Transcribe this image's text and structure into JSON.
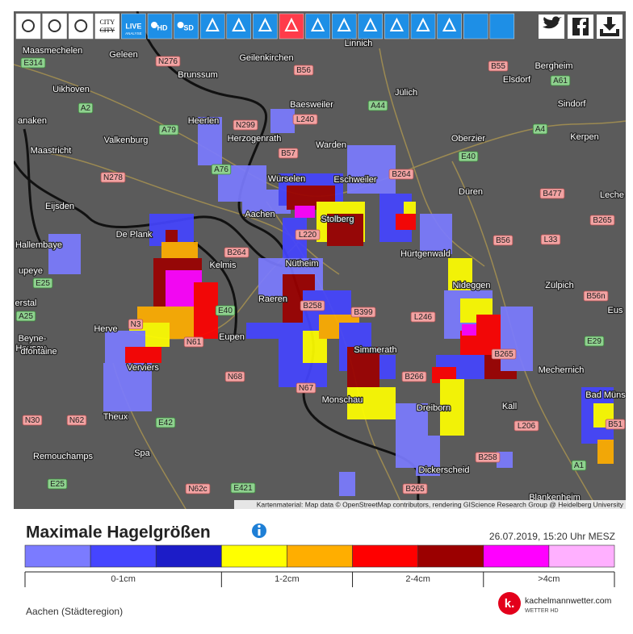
{
  "toolbar": {
    "city": "CITY",
    "live": "LIVE",
    "analyse": "ANALYSE",
    "hd": "HD",
    "sd": "SD"
  },
  "map": {
    "places": [
      "Maasmechelen",
      "Geleen",
      "Brunssum",
      "Geilenkirchen",
      "Linnich",
      "Jülich",
      "Bergheim",
      "Elsdorf",
      "Uikhoven",
      "Baesweiler",
      "Sindorf",
      "anaken",
      "Heerlen",
      "Herzogenrath",
      "Oberzier",
      "Kerpen",
      "Maastricht",
      "Valkenburg",
      "Warden",
      "Würselen",
      "Eschweiler",
      "Düren",
      "Leche",
      "Eijsden",
      "Aachen",
      "Stolberg",
      "De Plank",
      "Hallembaye",
      "Kelmis",
      "Nütheim",
      "Hürtgenwald",
      "upeye",
      "Nideggen",
      "Zülpich",
      "erstal",
      "Raeren",
      "Eus",
      "Herve",
      "Beyne-",
      "Heusay",
      "Eupen",
      "Simmerath",
      "dfontaine",
      "Verviers",
      "Mechernich",
      "Monschau",
      "Dreiborn",
      "Kall",
      "Bad Müns",
      "Theux",
      "Spa",
      "Remouchamps",
      "Dickerscheid",
      "Blankenheim"
    ],
    "roads": [
      "E314",
      "N276",
      "B56",
      "B55",
      "A61",
      "A2",
      "A44",
      "L240",
      "N299",
      "A79",
      "A4",
      "B57",
      "E40",
      "A76",
      "B264",
      "N278",
      "B477",
      "B265",
      "L220",
      "B56",
      "L33",
      "B264",
      "E25",
      "B56n",
      "A25",
      "E40",
      "B258",
      "B399",
      "L246",
      "N3",
      "E29",
      "N61",
      "B265",
      "N68",
      "B266",
      "N67",
      "N30",
      "N62",
      "E42",
      "L206",
      "B51",
      "B258",
      "A1",
      "E25",
      "N62c",
      "E421",
      "B265"
    ],
    "attribution": "Kartenmaterial: Map data © OpenStreetMap contributors, rendering GIScience Research Group @ Heidelberg University"
  },
  "legend": {
    "title": "Maximale Hagelgrößen",
    "timestamp": "26.07.2019, 15:20 Uhr MESZ",
    "colors": [
      "#7b7bff",
      "#4545ff",
      "#1c1cc8",
      "#ffff00",
      "#ffae00",
      "#ff0000",
      "#9b0000",
      "#ff00ff",
      "#ffb0ff"
    ],
    "ranges": [
      "0-1cm",
      "1-2cm",
      "2-4cm",
      ">4cm"
    ]
  },
  "location": "Aachen (Städteregion)",
  "brand": {
    "logo": "k.",
    "name": "kachelmannwetter.com",
    "sub": "WETTER HD"
  }
}
